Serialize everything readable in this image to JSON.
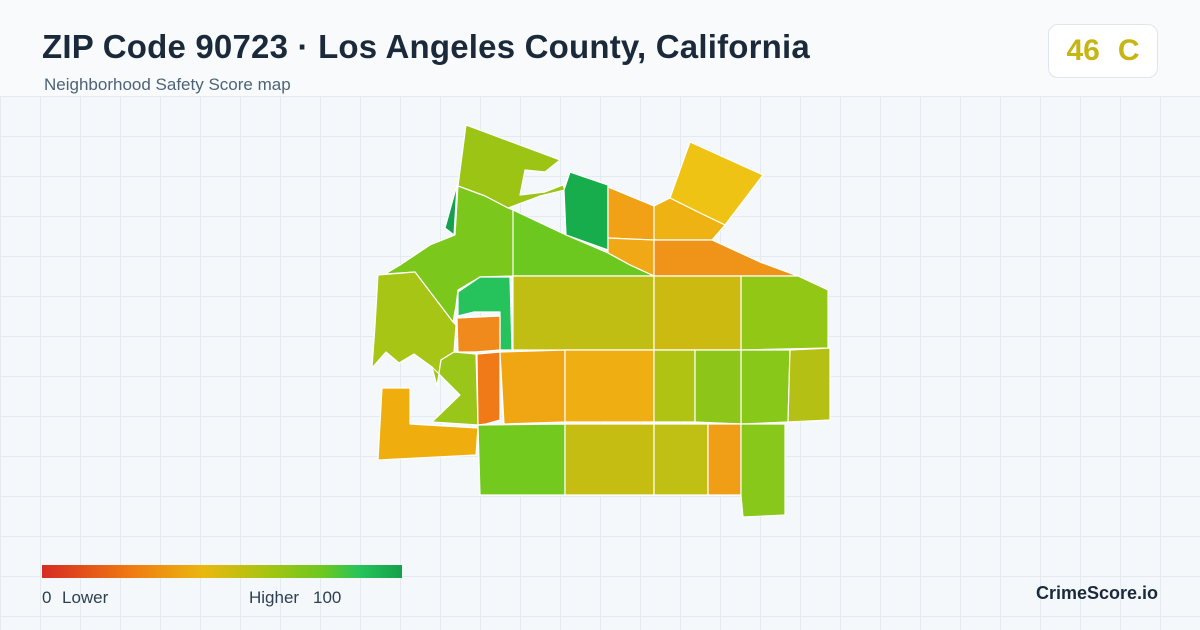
{
  "header": {
    "title": "ZIP Code 90723 · Los Angeles County, California",
    "subtitle": "Neighborhood Safety Score map"
  },
  "score": {
    "value": "46",
    "grade": "C",
    "color": "#c7b514"
  },
  "legend": {
    "min": "0",
    "low_label": "Lower",
    "high_label": "Higher",
    "max": "100",
    "scale_colors": [
      "#d62b22",
      "#f07b12",
      "#e9b80f",
      "#a8c412",
      "#6cc81f",
      "#27c45a",
      "#14a04c"
    ]
  },
  "brand": "CrimeScore.io",
  "map": {
    "area_fill_colors": [
      "#14a04c",
      "#9bc415",
      "#7cc71c",
      "#17ad4d",
      "#f0a115",
      "#eec313",
      "#eeb312",
      "#f0a816",
      "#f09419",
      "#6cc81f",
      "#93c716",
      "#a6c515",
      "#26c25c",
      "#c0be12",
      "#cdba11",
      "#87c818",
      "#f08a1c",
      "#f07a18",
      "#f0a512",
      "#efae12",
      "#b0c313",
      "#8ec519",
      "#b4c114",
      "#efae0d",
      "#74c91e",
      "#c5bd12",
      "#bfc013",
      "#f09e16",
      "#87c81b",
      "#99c618"
    ]
  }
}
